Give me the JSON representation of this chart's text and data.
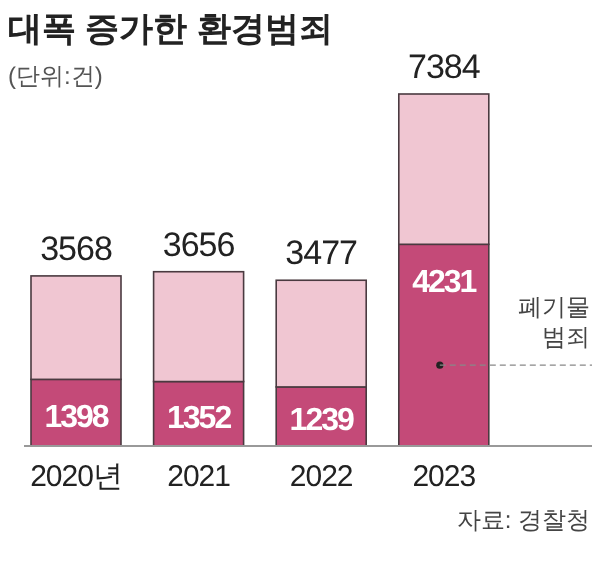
{
  "chart_data": {
    "type": "bar",
    "title": "대폭 증가한 환경범죄",
    "subtitle": "(단위:건)",
    "categories": [
      "2020년",
      "2021",
      "2022",
      "2023"
    ],
    "stacked": true,
    "series": [
      {
        "name": "폐기물 범죄",
        "color": "#c44a78",
        "values": [
          1398,
          1352,
          1239,
          4231
        ],
        "value_labels": [
          "1398",
          "1352",
          "1239",
          "4231"
        ]
      },
      {
        "color": "#f0c6d2",
        "values": [
          2170,
          2304,
          2238,
          3153
        ]
      }
    ],
    "totals": [
      "3568",
      "3656",
      "3477",
      "7384"
    ],
    "annotations": [
      "자료: 경찰청"
    ]
  }
}
